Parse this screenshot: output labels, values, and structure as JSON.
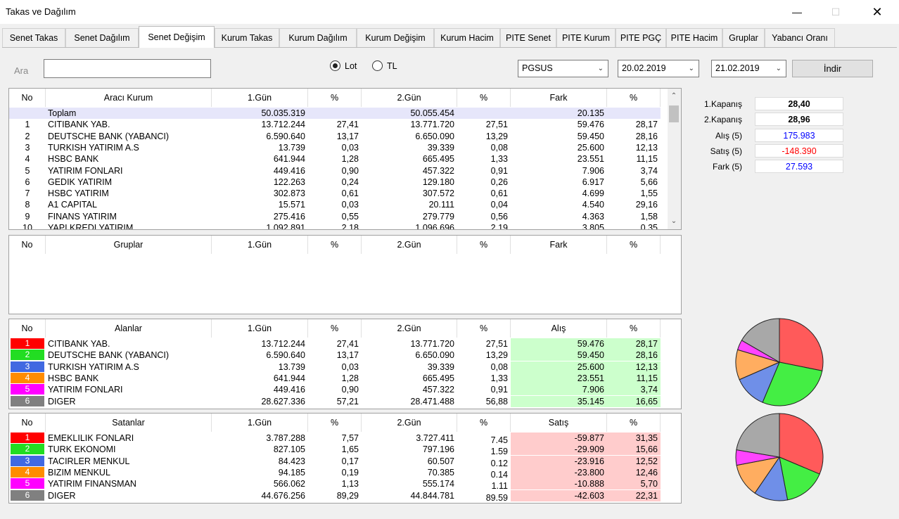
{
  "window": {
    "title": "Takas ve Dağılım"
  },
  "tabs": [
    {
      "label": "Senet Takas",
      "active": false
    },
    {
      "label": "Senet Dağılım",
      "active": false
    },
    {
      "label": "Senet Değişim",
      "active": true
    },
    {
      "label": "Kurum Takas",
      "active": false
    },
    {
      "label": "Kurum Dağılım",
      "active": false
    },
    {
      "label": "Kurum Değişim",
      "active": false
    },
    {
      "label": "Kurum Hacim",
      "active": false
    },
    {
      "label": "PITE Senet",
      "active": false
    },
    {
      "label": "PITE Kurum",
      "active": false
    },
    {
      "label": "PITE PGÇ",
      "active": false
    },
    {
      "label": "PITE Hacim",
      "active": false
    },
    {
      "label": "Gruplar",
      "active": false
    },
    {
      "label": "Yabancı Oranı",
      "active": false
    }
  ],
  "toolbar": {
    "search_label": "Ara",
    "search_value": "",
    "radio_lot": "Lot",
    "radio_tl": "TL",
    "selected_radio": "Lot",
    "symbol": "PGSUS",
    "date1": "20.02.2019",
    "date2": "21.02.2019",
    "download_label": "İndir"
  },
  "main_grid": {
    "headers": [
      "No",
      "Aracı Kurum",
      "1.Gün",
      "%",
      "2.Gün",
      "%",
      "Fark",
      "%"
    ],
    "total": {
      "no": "",
      "name": "Toplam",
      "d1": "50.035.319",
      "p1": "",
      "d2": "50.055.454",
      "p2": "",
      "diff": "20.135",
      "pd": ""
    },
    "rows": [
      {
        "no": "1",
        "name": "CITIBANK YAB.",
        "d1": "13.712.244",
        "p1": "27,41",
        "d2": "13.771.720",
        "p2": "27,51",
        "diff": "59.476",
        "pd": "28,17"
      },
      {
        "no": "2",
        "name": "DEUTSCHE BANK (YABANCI)",
        "d1": "6.590.640",
        "p1": "13,17",
        "d2": "6.650.090",
        "p2": "13,29",
        "diff": "59.450",
        "pd": "28,16"
      },
      {
        "no": "3",
        "name": "TURKISH YATIRIM  A.S",
        "d1": "13.739",
        "p1": "0,03",
        "d2": "39.339",
        "p2": "0,08",
        "diff": "25.600",
        "pd": "12,13"
      },
      {
        "no": "4",
        "name": "HSBC BANK",
        "d1": "641.944",
        "p1": "1,28",
        "d2": "665.495",
        "p2": "1,33",
        "diff": "23.551",
        "pd": "11,15"
      },
      {
        "no": "5",
        "name": "YATIRIM FONLARI",
        "d1": "449.416",
        "p1": "0,90",
        "d2": "457.322",
        "p2": "0,91",
        "diff": "7.906",
        "pd": "3,74"
      },
      {
        "no": "6",
        "name": "GEDIK YATIRIM",
        "d1": "122.263",
        "p1": "0,24",
        "d2": "129.180",
        "p2": "0,26",
        "diff": "6.917",
        "pd": "5,66"
      },
      {
        "no": "7",
        "name": "HSBC YATIRIM",
        "d1": "302.873",
        "p1": "0,61",
        "d2": "307.572",
        "p2": "0,61",
        "diff": "4.699",
        "pd": "1,55"
      },
      {
        "no": "8",
        "name": "A1 CAPITAL",
        "d1": "15.571",
        "p1": "0,03",
        "d2": "20.111",
        "p2": "0,04",
        "diff": "4.540",
        "pd": "29,16"
      },
      {
        "no": "9",
        "name": "FINANS YATIRIM",
        "d1": "275.416",
        "p1": "0,55",
        "d2": "279.779",
        "p2": "0,56",
        "diff": "4.363",
        "pd": "1,58"
      },
      {
        "no": "10",
        "name": "YAPI KREDI YATIRIM",
        "d1": "1.092.891",
        "p1": "2,18",
        "d2": "1.096.696",
        "p2": "2,19",
        "diff": "3.805",
        "pd": "0,35"
      }
    ]
  },
  "groups_grid": {
    "headers": [
      "No",
      "Gruplar",
      "1.Gün",
      "%",
      "2.Gün",
      "%",
      "Fark",
      "%"
    ]
  },
  "buyers_grid": {
    "headers": [
      "No",
      "Alanlar",
      "1.Gün",
      "%",
      "2.Gün",
      "%",
      "Alış",
      "%"
    ],
    "rows": [
      {
        "no": "1",
        "color": "#ff0000",
        "name": "CITIBANK YAB.",
        "d1": "13.712.244",
        "p1": "27,41",
        "d2": "13.771.720",
        "p2": "27,51",
        "diff": "59.476",
        "pd": "28,17"
      },
      {
        "no": "2",
        "color": "#22dd22",
        "name": "DEUTSCHE BANK (YABANCI)",
        "d1": "6.590.640",
        "p1": "13,17",
        "d2": "6.650.090",
        "p2": "13,29",
        "diff": "59.450",
        "pd": "28,16"
      },
      {
        "no": "3",
        "color": "#4169e1",
        "name": "TURKISH YATIRIM  A.S",
        "d1": "13.739",
        "p1": "0,03",
        "d2": "39.339",
        "p2": "0,08",
        "diff": "25.600",
        "pd": "12,13"
      },
      {
        "no": "4",
        "color": "#ff8c00",
        "name": "HSBC BANK",
        "d1": "641.944",
        "p1": "1,28",
        "d2": "665.495",
        "p2": "1,33",
        "diff": "23.551",
        "pd": "11,15"
      },
      {
        "no": "5",
        "color": "#ff00ff",
        "name": "YATIRIM FONLARI",
        "d1": "449.416",
        "p1": "0,90",
        "d2": "457.322",
        "p2": "0,91",
        "diff": "7.906",
        "pd": "3,74"
      },
      {
        "no": "6",
        "color": "#808080",
        "name": "DIGER",
        "d1": "28.627.336",
        "p1": "57,21",
        "d2": "28.471.488",
        "p2": "56,88",
        "diff": "35.145",
        "pd": "16,65"
      }
    ]
  },
  "sellers_grid": {
    "headers": [
      "No",
      "Satanlar",
      "1.Gün",
      "%",
      "2.Gün",
      "%",
      "Satış",
      "%"
    ],
    "rows": [
      {
        "no": "1",
        "color": "#ff0000",
        "name": "EMEKLILIK FONLARI",
        "d1": "3.787.288",
        "p1": "7,57",
        "d2": "3.727.411",
        "p2": "7.45",
        "diff": "-59.877",
        "pd": "31,35"
      },
      {
        "no": "2",
        "color": "#22dd22",
        "name": "TURK EKONOMI",
        "d1": "827.105",
        "p1": "1,65",
        "d2": "797.196",
        "p2": "1.59",
        "diff": "-29.909",
        "pd": "15,66"
      },
      {
        "no": "3",
        "color": "#4169e1",
        "name": "TACIRLER MENKUL",
        "d1": "84.423",
        "p1": "0,17",
        "d2": "60.507",
        "p2": "0.12",
        "diff": "-23.916",
        "pd": "12,52"
      },
      {
        "no": "4",
        "color": "#ff8c00",
        "name": "BIZIM MENKUL",
        "d1": "94.185",
        "p1": "0,19",
        "d2": "70.385",
        "p2": "0.14",
        "diff": "-23.800",
        "pd": "12,46"
      },
      {
        "no": "5",
        "color": "#ff00ff",
        "name": "YATIRIM FINANSMAN",
        "d1": "566.062",
        "p1": "1,13",
        "d2": "555.174",
        "p2": "1.11",
        "diff": "-10.888",
        "pd": "5,70"
      },
      {
        "no": "6",
        "color": "#808080",
        "name": "DIGER",
        "d1": "44.676.256",
        "p1": "89,29",
        "d2": "44.844.781",
        "p2": "89.59",
        "diff": "-42.603",
        "pd": "22,31"
      }
    ]
  },
  "summary": [
    {
      "label": "1.Kapanış",
      "value": "28,40",
      "color": "#000000",
      "bold": true
    },
    {
      "label": "2.Kapanış",
      "value": "28,96",
      "color": "#000000",
      "bold": true
    },
    {
      "label": "Alış (5)",
      "value": "175.983",
      "color": "#0000ff",
      "bold": false
    },
    {
      "label": "Satış (5)",
      "value": "-148.390",
      "color": "#ff0000",
      "bold": false
    },
    {
      "label": "Fark (5)",
      "value": "27.593",
      "color": "#0000ff",
      "bold": false
    }
  ],
  "colors": {
    "buy_bg": "#ccffcc",
    "sell_bg": "#ffcccc",
    "total_bg": "#e6e6fa"
  },
  "chart_data": [
    {
      "type": "pie",
      "categories": [
        "CITIBANK YAB.",
        "DEUTSCHE BANK (YABANCI)",
        "TURKISH YATIRIM  A.S",
        "HSBC BANK",
        "YATIRIM FONLARI",
        "DIGER"
      ],
      "values": [
        28.17,
        28.16,
        12.13,
        11.15,
        3.74,
        16.65
      ],
      "colors": [
        "#ff5a5a",
        "#44ee44",
        "#6f8fe8",
        "#ffad60",
        "#ff44ff",
        "#a8a8a8"
      ]
    },
    {
      "type": "pie",
      "categories": [
        "EMEKLILIK FONLARI",
        "TURK EKONOMI",
        "TACIRLER MENKUL",
        "BIZIM MENKUL",
        "YATIRIM FINANSMAN",
        "DIGER"
      ],
      "values": [
        31.35,
        15.66,
        12.52,
        12.46,
        5.7,
        22.31
      ],
      "colors": [
        "#ff5a5a",
        "#44ee44",
        "#6f8fe8",
        "#ffad60",
        "#ff44ff",
        "#a8a8a8"
      ]
    }
  ]
}
